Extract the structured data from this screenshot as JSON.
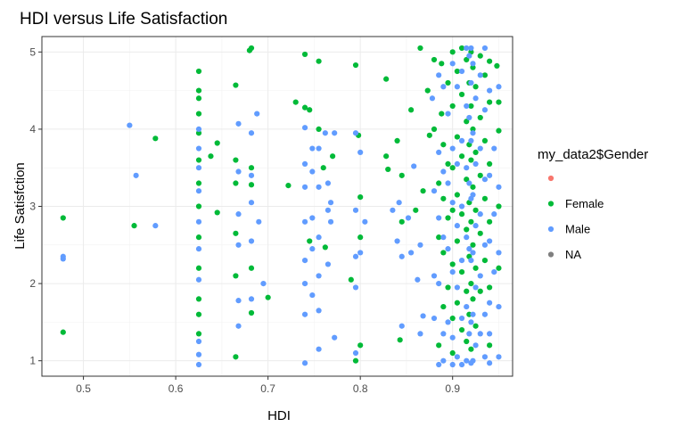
{
  "chart_data": {
    "type": "scatter",
    "title": "HDI versus Life Satisfaction",
    "xlabel": "HDI",
    "ylabel": "Life Satisfction",
    "xlim": [
      0.455,
      0.965
    ],
    "ylim": [
      0.8,
      5.2
    ],
    "xticks": [
      0.5,
      0.6,
      0.7,
      0.8,
      0.9
    ],
    "yticks": [
      1,
      2,
      3,
      4,
      5
    ],
    "x_tick_labels": [
      "0.5",
      "0.6",
      "0.7",
      "0.8",
      "0.9"
    ],
    "y_tick_labels": [
      "1",
      "2",
      "3",
      "4",
      "5"
    ],
    "grid": true,
    "legend": {
      "title": "my_data2$Gender",
      "position": "right",
      "entries": [
        {
          "label": "",
          "color": "#F8766D"
        },
        {
          "label": "Female",
          "color": "#00BA38"
        },
        {
          "label": "Male",
          "color": "#619CFF"
        },
        {
          "label": "NA",
          "color": "#7F7F7F"
        }
      ]
    },
    "series": [
      {
        "name": "Female",
        "color": "#00BA38",
        "points": [
          [
            0.478,
            2.85
          ],
          [
            0.478,
            1.37
          ],
          [
            0.555,
            2.75
          ],
          [
            0.578,
            3.88
          ],
          [
            0.625,
            4.75
          ],
          [
            0.625,
            4.5
          ],
          [
            0.625,
            4.4
          ],
          [
            0.625,
            4.2
          ],
          [
            0.625,
            3.95
          ],
          [
            0.625,
            3.6
          ],
          [
            0.625,
            3.3
          ],
          [
            0.625,
            3.0
          ],
          [
            0.625,
            2.6
          ],
          [
            0.625,
            2.2
          ],
          [
            0.625,
            1.8
          ],
          [
            0.625,
            1.6
          ],
          [
            0.625,
            1.35
          ],
          [
            0.638,
            3.65
          ],
          [
            0.645,
            3.82
          ],
          [
            0.645,
            2.92
          ],
          [
            0.665,
            4.57
          ],
          [
            0.665,
            3.6
          ],
          [
            0.665,
            3.3
          ],
          [
            0.665,
            2.65
          ],
          [
            0.665,
            2.1
          ],
          [
            0.665,
            1.05
          ],
          [
            0.68,
            5.02
          ],
          [
            0.682,
            5.05
          ],
          [
            0.682,
            3.5
          ],
          [
            0.682,
            3.28
          ],
          [
            0.682,
            2.2
          ],
          [
            0.682,
            1.62
          ],
          [
            0.7,
            1.82
          ],
          [
            0.722,
            3.27
          ],
          [
            0.73,
            4.35
          ],
          [
            0.74,
            4.97
          ],
          [
            0.74,
            4.28
          ],
          [
            0.745,
            4.25
          ],
          [
            0.745,
            2.55
          ],
          [
            0.755,
            4.88
          ],
          [
            0.755,
            4.0
          ],
          [
            0.76,
            3.5
          ],
          [
            0.762,
            2.47
          ],
          [
            0.77,
            3.65
          ],
          [
            0.79,
            2.05
          ],
          [
            0.795,
            4.83
          ],
          [
            0.795,
            1.0
          ],
          [
            0.798,
            3.92
          ],
          [
            0.8,
            3.12
          ],
          [
            0.8,
            1.2
          ],
          [
            0.8,
            2.6
          ],
          [
            0.828,
            4.65
          ],
          [
            0.828,
            3.65
          ],
          [
            0.83,
            3.48
          ],
          [
            0.84,
            3.85
          ],
          [
            0.843,
            1.27
          ],
          [
            0.845,
            3.4
          ],
          [
            0.845,
            2.8
          ],
          [
            0.855,
            4.25
          ],
          [
            0.86,
            2.95
          ],
          [
            0.865,
            5.05
          ],
          [
            0.868,
            3.2
          ],
          [
            0.873,
            4.5
          ],
          [
            0.875,
            3.92
          ],
          [
            0.88,
            4.9
          ],
          [
            0.88,
            4.0
          ],
          [
            0.885,
            3.3
          ],
          [
            0.885,
            2.6
          ],
          [
            0.885,
            1.2
          ],
          [
            0.888,
            4.85
          ],
          [
            0.888,
            4.2
          ],
          [
            0.89,
            3.8
          ],
          [
            0.89,
            3.1
          ],
          [
            0.89,
            2.4
          ],
          [
            0.89,
            1.7
          ],
          [
            0.895,
            4.6
          ],
          [
            0.895,
            3.55
          ],
          [
            0.895,
            2.85
          ],
          [
            0.895,
            1.95
          ],
          [
            0.9,
            5.0
          ],
          [
            0.9,
            4.3
          ],
          [
            0.9,
            3.5
          ],
          [
            0.9,
            2.95
          ],
          [
            0.9,
            2.25
          ],
          [
            0.9,
            1.55
          ],
          [
            0.9,
            1.1
          ],
          [
            0.905,
            4.75
          ],
          [
            0.905,
            3.9
          ],
          [
            0.905,
            3.15
          ],
          [
            0.905,
            2.55
          ],
          [
            0.905,
            1.75
          ],
          [
            0.91,
            5.05
          ],
          [
            0.91,
            4.45
          ],
          [
            0.91,
            3.65
          ],
          [
            0.91,
            2.9
          ],
          [
            0.91,
            2.15
          ],
          [
            0.91,
            1.4
          ],
          [
            0.915,
            4.9
          ],
          [
            0.915,
            4.1
          ],
          [
            0.915,
            3.35
          ],
          [
            0.915,
            2.7
          ],
          [
            0.915,
            1.9
          ],
          [
            0.915,
            1.25
          ],
          [
            0.918,
            4.6
          ],
          [
            0.918,
            3.8
          ],
          [
            0.918,
            3.05
          ],
          [
            0.918,
            2.35
          ],
          [
            0.918,
            1.6
          ],
          [
            0.92,
            5.0
          ],
          [
            0.92,
            4.3
          ],
          [
            0.92,
            3.6
          ],
          [
            0.92,
            2.8
          ],
          [
            0.92,
            2.0
          ],
          [
            0.92,
            1.15
          ],
          [
            0.922,
            4.8
          ],
          [
            0.922,
            4.0
          ],
          [
            0.922,
            3.25
          ],
          [
            0.922,
            2.5
          ],
          [
            0.922,
            1.8
          ],
          [
            0.925,
            4.55
          ],
          [
            0.925,
            3.7
          ],
          [
            0.925,
            2.95
          ],
          [
            0.925,
            2.2
          ],
          [
            0.925,
            1.45
          ],
          [
            0.93,
            4.95
          ],
          [
            0.93,
            4.15
          ],
          [
            0.93,
            3.4
          ],
          [
            0.93,
            2.65
          ],
          [
            0.93,
            1.9
          ],
          [
            0.935,
            4.7
          ],
          [
            0.935,
            3.85
          ],
          [
            0.935,
            3.1
          ],
          [
            0.935,
            2.3
          ],
          [
            0.94,
            4.88
          ],
          [
            0.94,
            4.35
          ],
          [
            0.94,
            3.55
          ],
          [
            0.94,
            2.8
          ],
          [
            0.94,
            1.95
          ],
          [
            0.94,
            1.2
          ],
          [
            0.948,
            4.82
          ],
          [
            0.95,
            4.35
          ],
          [
            0.95,
            3.98
          ],
          [
            0.95,
            3.0
          ],
          [
            0.95,
            2.2
          ]
        ]
      },
      {
        "name": "Male",
        "color": "#619CFF",
        "points": [
          [
            0.478,
            2.35
          ],
          [
            0.478,
            2.32
          ],
          [
            0.55,
            4.05
          ],
          [
            0.557,
            3.4
          ],
          [
            0.578,
            2.75
          ],
          [
            0.625,
            4.0
          ],
          [
            0.625,
            3.75
          ],
          [
            0.625,
            3.5
          ],
          [
            0.625,
            3.2
          ],
          [
            0.625,
            2.8
          ],
          [
            0.625,
            2.45
          ],
          [
            0.625,
            2.05
          ],
          [
            0.625,
            1.25
          ],
          [
            0.625,
            1.08
          ],
          [
            0.625,
            0.95
          ],
          [
            0.668,
            4.07
          ],
          [
            0.668,
            3.45
          ],
          [
            0.668,
            2.9
          ],
          [
            0.668,
            2.5
          ],
          [
            0.668,
            1.78
          ],
          [
            0.668,
            1.45
          ],
          [
            0.682,
            3.95
          ],
          [
            0.682,
            3.4
          ],
          [
            0.682,
            3.05
          ],
          [
            0.682,
            2.55
          ],
          [
            0.682,
            1.8
          ],
          [
            0.688,
            4.2
          ],
          [
            0.69,
            2.8
          ],
          [
            0.695,
            2.0
          ],
          [
            0.74,
            4.02
          ],
          [
            0.74,
            3.55
          ],
          [
            0.74,
            3.25
          ],
          [
            0.74,
            2.8
          ],
          [
            0.74,
            2.3
          ],
          [
            0.74,
            2.0
          ],
          [
            0.74,
            1.6
          ],
          [
            0.74,
            0.97
          ],
          [
            0.748,
            3.75
          ],
          [
            0.748,
            3.45
          ],
          [
            0.748,
            2.85
          ],
          [
            0.748,
            2.45
          ],
          [
            0.748,
            1.85
          ],
          [
            0.755,
            3.75
          ],
          [
            0.755,
            3.25
          ],
          [
            0.755,
            2.6
          ],
          [
            0.755,
            2.1
          ],
          [
            0.755,
            1.65
          ],
          [
            0.755,
            1.15
          ],
          [
            0.762,
            3.95
          ],
          [
            0.765,
            3.3
          ],
          [
            0.765,
            2.95
          ],
          [
            0.765,
            2.25
          ],
          [
            0.768,
            3.05
          ],
          [
            0.768,
            2.8
          ],
          [
            0.772,
            3.95
          ],
          [
            0.772,
            1.3
          ],
          [
            0.795,
            3.95
          ],
          [
            0.795,
            2.95
          ],
          [
            0.795,
            2.35
          ],
          [
            0.795,
            1.95
          ],
          [
            0.795,
            1.1
          ],
          [
            0.8,
            3.7
          ],
          [
            0.8,
            2.4
          ],
          [
            0.805,
            2.8
          ],
          [
            0.835,
            2.95
          ],
          [
            0.84,
            2.55
          ],
          [
            0.842,
            3.05
          ],
          [
            0.845,
            2.35
          ],
          [
            0.845,
            1.45
          ],
          [
            0.852,
            2.85
          ],
          [
            0.855,
            2.4
          ],
          [
            0.858,
            3.52
          ],
          [
            0.862,
            2.05
          ],
          [
            0.865,
            2.5
          ],
          [
            0.865,
            1.35
          ],
          [
            0.868,
            1.58
          ],
          [
            0.878,
            4.4
          ],
          [
            0.88,
            3.2
          ],
          [
            0.88,
            2.1
          ],
          [
            0.88,
            1.55
          ],
          [
            0.885,
            4.7
          ],
          [
            0.885,
            3.7
          ],
          [
            0.885,
            2.85
          ],
          [
            0.885,
            2.0
          ],
          [
            0.885,
            0.95
          ],
          [
            0.89,
            4.55
          ],
          [
            0.89,
            3.45
          ],
          [
            0.89,
            2.6
          ],
          [
            0.89,
            1.35
          ],
          [
            0.89,
            1.0
          ],
          [
            0.895,
            4.2
          ],
          [
            0.895,
            3.3
          ],
          [
            0.895,
            2.45
          ],
          [
            0.895,
            1.5
          ],
          [
            0.9,
            4.85
          ],
          [
            0.9,
            3.75
          ],
          [
            0.9,
            3.05
          ],
          [
            0.9,
            2.15
          ],
          [
            0.9,
            1.3
          ],
          [
            0.9,
            0.95
          ],
          [
            0.905,
            4.55
          ],
          [
            0.905,
            3.55
          ],
          [
            0.905,
            2.75
          ],
          [
            0.905,
            1.95
          ],
          [
            0.905,
            1.05
          ],
          [
            0.91,
            4.75
          ],
          [
            0.91,
            3.85
          ],
          [
            0.91,
            3.0
          ],
          [
            0.91,
            2.3
          ],
          [
            0.91,
            1.55
          ],
          [
            0.91,
            0.95
          ],
          [
            0.915,
            5.05
          ],
          [
            0.915,
            4.3
          ],
          [
            0.915,
            3.5
          ],
          [
            0.915,
            2.6
          ],
          [
            0.915,
            1.7
          ],
          [
            0.915,
            1.0
          ],
          [
            0.918,
            4.95
          ],
          [
            0.918,
            4.15
          ],
          [
            0.918,
            3.3
          ],
          [
            0.918,
            2.45
          ],
          [
            0.918,
            1.35
          ],
          [
            0.92,
            5.05
          ],
          [
            0.92,
            4.6
          ],
          [
            0.92,
            3.85
          ],
          [
            0.92,
            3.1
          ],
          [
            0.92,
            2.3
          ],
          [
            0.92,
            1.5
          ],
          [
            0.92,
            0.97
          ],
          [
            0.922,
            4.85
          ],
          [
            0.922,
            3.95
          ],
          [
            0.922,
            3.15
          ],
          [
            0.922,
            2.4
          ],
          [
            0.922,
            1.6
          ],
          [
            0.922,
            1.0
          ],
          [
            0.925,
            4.4
          ],
          [
            0.925,
            3.55
          ],
          [
            0.925,
            2.75
          ],
          [
            0.925,
            1.95
          ],
          [
            0.925,
            1.2
          ],
          [
            0.93,
            4.7
          ],
          [
            0.93,
            3.75
          ],
          [
            0.93,
            2.9
          ],
          [
            0.93,
            2.1
          ],
          [
            0.93,
            1.35
          ],
          [
            0.935,
            5.05
          ],
          [
            0.935,
            4.25
          ],
          [
            0.935,
            3.35
          ],
          [
            0.935,
            2.5
          ],
          [
            0.935,
            1.6
          ],
          [
            0.935,
            1.05
          ],
          [
            0.94,
            4.5
          ],
          [
            0.94,
            3.4
          ],
          [
            0.94,
            2.55
          ],
          [
            0.94,
            1.75
          ],
          [
            0.94,
            1.35
          ],
          [
            0.94,
            0.97
          ],
          [
            0.945,
            3.75
          ],
          [
            0.945,
            2.9
          ],
          [
            0.945,
            2.15
          ],
          [
            0.95,
            4.55
          ],
          [
            0.95,
            3.25
          ],
          [
            0.95,
            2.4
          ],
          [
            0.95,
            1.7
          ],
          [
            0.95,
            1.05
          ]
        ]
      }
    ]
  }
}
